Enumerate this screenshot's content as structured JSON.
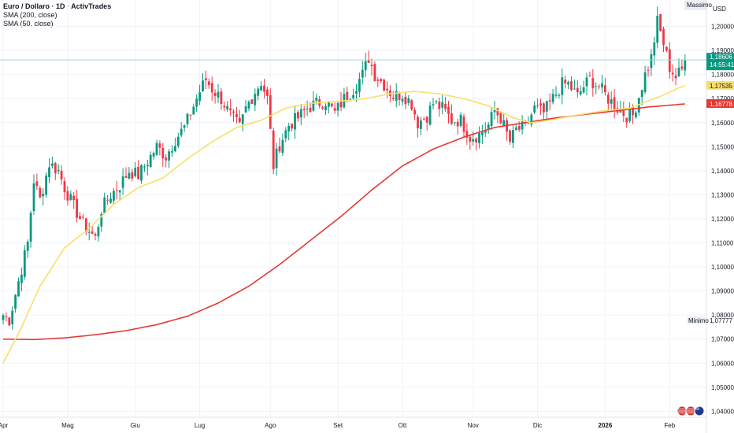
{
  "legend": {
    "title": "Euro / Dollaro · 1D · ActivTrades",
    "sma200": "SMA (200, close)",
    "sma50": "SMA (50, close)"
  },
  "axis": {
    "currency": "USD",
    "massimo_label": "Massimo",
    "minimo_label": "Minimo"
  },
  "chart_data": {
    "type": "candlestick",
    "title": "Euro / Dollaro · 1D · ActivTrades",
    "ylim": [
      1.0375,
      1.211
    ],
    "y_ticks": [
      "1,20000",
      "1,19000",
      "1,18000",
      "1,17000",
      "1,16000",
      "1,15000",
      "1,14000",
      "1,13000",
      "1,12000",
      "1,11000",
      "1,10000",
      "1,09000",
      "1,08000",
      "1,07000",
      "1,06000",
      "1,05000",
      "1,04000"
    ],
    "x_ticks": [
      {
        "label": "Apr",
        "pos": 0
      },
      {
        "label": "Mag",
        "pos": 21
      },
      {
        "label": "Giu",
        "pos": 43
      },
      {
        "label": "Lug",
        "pos": 64
      },
      {
        "label": "Ago",
        "pos": 87
      },
      {
        "label": "Set",
        "pos": 109
      },
      {
        "label": "Ott",
        "pos": 130
      },
      {
        "label": "Nov",
        "pos": 153
      },
      {
        "label": "Dic",
        "pos": 174
      },
      {
        "label": "2026",
        "pos": 196
      },
      {
        "label": "Feb",
        "pos": 217
      }
    ],
    "price_anchors": [
      [
        0,
        1.08
      ],
      [
        2,
        1.078
      ],
      [
        5,
        1.094
      ],
      [
        8,
        1.11
      ],
      [
        10,
        1.136
      ],
      [
        12,
        1.128
      ],
      [
        15,
        1.143
      ],
      [
        18,
        1.14
      ],
      [
        20,
        1.133
      ],
      [
        23,
        1.125
      ],
      [
        26,
        1.118
      ],
      [
        28,
        1.115
      ],
      [
        30,
        1.112
      ],
      [
        32,
        1.124
      ],
      [
        35,
        1.13
      ],
      [
        38,
        1.134
      ],
      [
        41,
        1.14
      ],
      [
        44,
        1.138
      ],
      [
        47,
        1.144
      ],
      [
        50,
        1.15
      ],
      [
        53,
        1.146
      ],
      [
        56,
        1.153
      ],
      [
        59,
        1.158
      ],
      [
        62,
        1.167
      ],
      [
        64,
        1.173
      ],
      [
        66,
        1.178
      ],
      [
        68,
        1.174
      ],
      [
        71,
        1.17
      ],
      [
        74,
        1.163
      ],
      [
        77,
        1.158
      ],
      [
        79,
        1.166
      ],
      [
        82,
        1.173
      ],
      [
        84,
        1.177
      ],
      [
        86,
        1.17
      ],
      [
        88,
        1.142
      ],
      [
        90,
        1.151
      ],
      [
        93,
        1.159
      ],
      [
        96,
        1.162
      ],
      [
        99,
        1.166
      ],
      [
        102,
        1.168
      ],
      [
        105,
        1.169
      ],
      [
        108,
        1.164
      ],
      [
        111,
        1.17
      ],
      [
        114,
        1.174
      ],
      [
        117,
        1.18
      ],
      [
        119,
        1.187
      ],
      [
        121,
        1.18
      ],
      [
        124,
        1.176
      ],
      [
        127,
        1.171
      ],
      [
        130,
        1.172
      ],
      [
        133,
        1.168
      ],
      [
        135,
        1.16
      ],
      [
        138,
        1.163
      ],
      [
        140,
        1.168
      ],
      [
        143,
        1.166
      ],
      [
        146,
        1.161
      ],
      [
        149,
        1.161
      ],
      [
        152,
        1.154
      ],
      [
        155,
        1.155
      ],
      [
        158,
        1.159
      ],
      [
        160,
        1.165
      ],
      [
        162,
        1.162
      ],
      [
        165,
        1.152
      ],
      [
        167,
        1.157
      ],
      [
        170,
        1.158
      ],
      [
        173,
        1.166
      ],
      [
        176,
        1.164
      ],
      [
        179,
        1.17
      ],
      [
        182,
        1.176
      ],
      [
        184,
        1.176
      ],
      [
        187,
        1.171
      ],
      [
        189,
        1.175
      ],
      [
        191,
        1.178
      ],
      [
        194,
        1.175
      ],
      [
        197,
        1.17
      ],
      [
        200,
        1.166
      ],
      [
        203,
        1.163
      ],
      [
        205,
        1.163
      ],
      [
        207,
        1.171
      ],
      [
        209,
        1.18
      ],
      [
        211,
        1.187
      ],
      [
        213,
        1.202
      ],
      [
        215,
        1.193
      ],
      [
        217,
        1.183
      ],
      [
        219,
        1.179
      ],
      [
        221,
        1.182
      ],
      [
        222,
        1.186
      ]
    ],
    "sma50_anchors": [
      [
        0,
        1.06
      ],
      [
        6,
        1.075
      ],
      [
        12,
        1.092
      ],
      [
        20,
        1.108
      ],
      [
        28,
        1.116
      ],
      [
        36,
        1.126
      ],
      [
        44,
        1.133
      ],
      [
        52,
        1.137
      ],
      [
        60,
        1.145
      ],
      [
        68,
        1.152
      ],
      [
        76,
        1.158
      ],
      [
        84,
        1.161
      ],
      [
        92,
        1.166
      ],
      [
        100,
        1.168
      ],
      [
        110,
        1.169
      ],
      [
        118,
        1.17
      ],
      [
        126,
        1.172
      ],
      [
        134,
        1.173
      ],
      [
        142,
        1.172
      ],
      [
        150,
        1.17
      ],
      [
        158,
        1.167
      ],
      [
        166,
        1.162
      ],
      [
        172,
        1.16
      ],
      [
        178,
        1.161
      ],
      [
        186,
        1.163
      ],
      [
        196,
        1.165
      ],
      [
        204,
        1.166
      ],
      [
        210,
        1.169
      ],
      [
        216,
        1.172
      ],
      [
        220,
        1.1745
      ],
      [
        222,
        1.1753
      ]
    ],
    "sma200_anchors": [
      [
        0,
        1.07
      ],
      [
        10,
        1.0698
      ],
      [
        20,
        1.0705
      ],
      [
        30,
        1.0718
      ],
      [
        40,
        1.0735
      ],
      [
        50,
        1.076
      ],
      [
        60,
        1.0795
      ],
      [
        70,
        1.085
      ],
      [
        80,
        1.092
      ],
      [
        90,
        1.101
      ],
      [
        100,
        1.111
      ],
      [
        110,
        1.121
      ],
      [
        120,
        1.132
      ],
      [
        130,
        1.142
      ],
      [
        140,
        1.149
      ],
      [
        150,
        1.154
      ],
      [
        160,
        1.158
      ],
      [
        170,
        1.16
      ],
      [
        180,
        1.162
      ],
      [
        190,
        1.1635
      ],
      [
        200,
        1.165
      ],
      [
        210,
        1.1665
      ],
      [
        222,
        1.1678
      ]
    ],
    "price_label": "1,18606",
    "price_value": 1.18606,
    "countdown": "14:55:41",
    "sma50_label": "1,17535",
    "sma50_value": 1.17535,
    "sma200_label": "1,16778",
    "sma200_value": 1.16778,
    "minimo_value_label": "1,07777",
    "minimo_value": 1.07777,
    "massimo_value": 1.2045,
    "colors": {
      "up": "#089981",
      "down": "#f23645",
      "sma50": "#f7e06a",
      "sma200": "#e53935",
      "price_line": "#9ad7cf",
      "grid": "#f0f3fa"
    }
  }
}
